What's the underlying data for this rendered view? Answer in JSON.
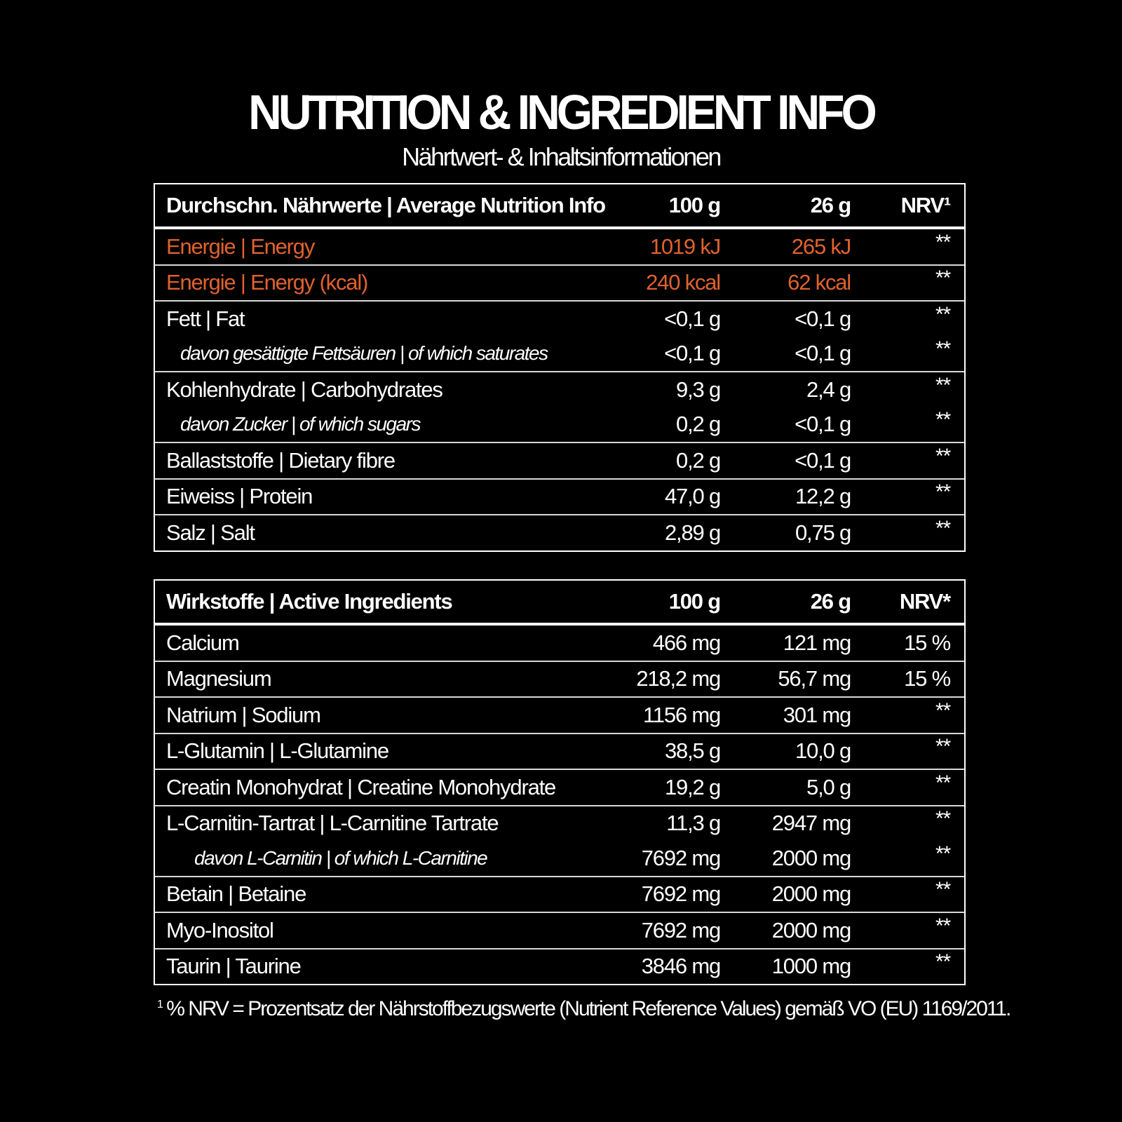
{
  "title": "NUTRITION & INGREDIENT INFO",
  "subtitle": "Nährtwert- & Inhaltsinformationen",
  "colors": {
    "accent": "#e0622e",
    "background": "#000000",
    "text": "#ffffff"
  },
  "nutrition": {
    "headers": [
      "Durchschn. Nährwerte | Average Nutrition Info",
      "100 g",
      "26 g",
      "NRV¹"
    ],
    "groups": [
      [
        {
          "label": "Energie | Energy",
          "v100": "1019 kJ",
          "v26": "265 kJ",
          "nrv": "**",
          "highlight": true
        }
      ],
      [
        {
          "label": "Energie | Energy (kcal)",
          "v100": "240 kcal",
          "v26": "62 kcal",
          "nrv": "**",
          "highlight": true
        }
      ],
      [
        {
          "label": "Fett | Fat",
          "v100": "<0,1 g",
          "v26": "<0,1 g",
          "nrv": "**"
        },
        {
          "label": "davon gesättigte Fettsäuren | of which saturates",
          "v100": "<0,1 g",
          "v26": "<0,1 g",
          "nrv": "**",
          "sub": 1
        }
      ],
      [
        {
          "label": "Kohlenhydrate | Carbohydrates",
          "v100": "9,3 g",
          "v26": "2,4 g",
          "nrv": "**"
        },
        {
          "label": "davon Zucker | of which sugars",
          "v100": "0,2 g",
          "v26": "<0,1 g",
          "nrv": "**",
          "sub": 1
        }
      ],
      [
        {
          "label": "Ballaststoffe | Dietary fibre",
          "v100": "0,2 g",
          "v26": "<0,1 g",
          "nrv": "**"
        }
      ],
      [
        {
          "label": "Eiweiss | Protein",
          "v100": "47,0 g",
          "v26": "12,2 g",
          "nrv": "**"
        }
      ],
      [
        {
          "label": "Salz | Salt",
          "v100": "2,89 g",
          "v26": "0,75 g",
          "nrv": "**"
        }
      ]
    ]
  },
  "ingredients": {
    "headers": [
      "Wirkstoffe | Active Ingredients",
      "100 g",
      "26 g",
      "NRV*"
    ],
    "groups": [
      [
        {
          "label": "Calcium",
          "v100": "466 mg",
          "v26": "121 mg",
          "nrv": "15 %"
        }
      ],
      [
        {
          "label": "Magnesium",
          "v100": "218,2 mg",
          "v26": "56,7 mg",
          "nrv": "15 %"
        }
      ],
      [
        {
          "label": "Natrium | Sodium",
          "v100": "1156 mg",
          "v26": "301 mg",
          "nrv": "**"
        }
      ],
      [
        {
          "label": "L-Glutamin | L-Glutamine",
          "v100": "38,5 g",
          "v26": "10,0 g",
          "nrv": "**"
        }
      ],
      [
        {
          "label": "Creatin Monohydrat | Creatine Monohydrate",
          "v100": "19,2 g",
          "v26": "5,0 g",
          "nrv": "**"
        }
      ],
      [
        {
          "label": "L-Carnitin-Tartrat | L-Carnitine Tartrate",
          "v100": "11,3 g",
          "v26": "2947 mg",
          "nrv": "**"
        },
        {
          "label": "davon L-Carnitin | of which L-Carnitine",
          "v100": "7692 mg",
          "v26": "2000 mg",
          "nrv": "**",
          "sub": 2
        }
      ],
      [
        {
          "label": "Betain | Betaine",
          "v100": "7692 mg",
          "v26": "2000 mg",
          "nrv": "**"
        }
      ],
      [
        {
          "label": "Myo-Inositol",
          "v100": "7692 mg",
          "v26": "2000 mg",
          "nrv": "**"
        }
      ],
      [
        {
          "label": "Taurin | Taurine",
          "v100": "3846 mg",
          "v26": "1000 mg",
          "nrv": "**"
        }
      ]
    ]
  },
  "footnote": {
    "marker": "1",
    "text": "% NRV = Prozentsatz der Nährstoffbezugswerte (Nutrient Reference Values) gemäß VO (EU) 1169/2011."
  }
}
